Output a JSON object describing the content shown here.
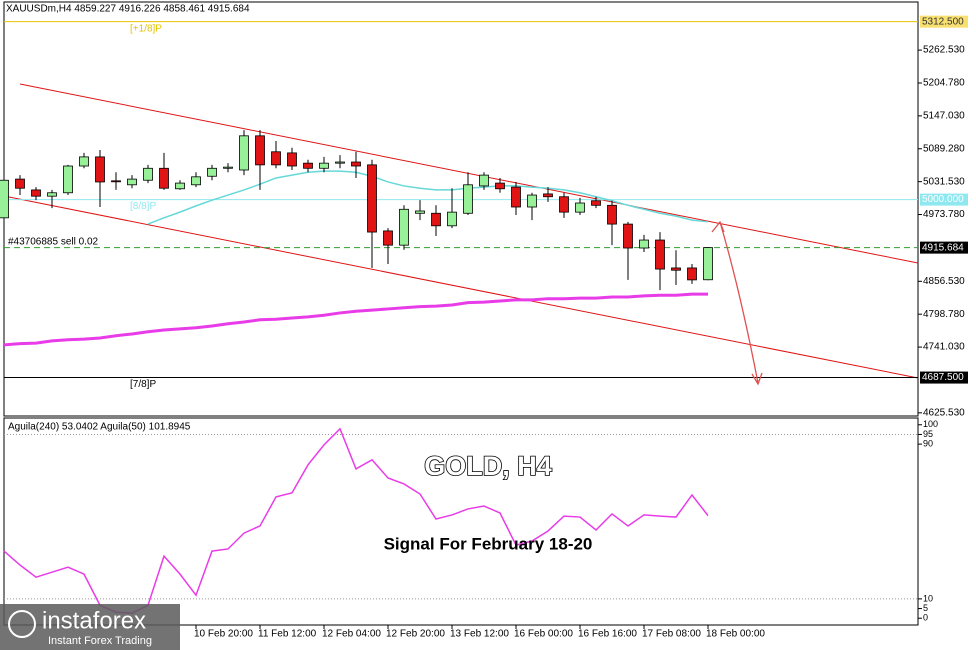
{
  "chart_data": {
    "type": "candlestick",
    "header": "XAUUSDm,H4  4859.227 4916.226 4858.461 4915.684",
    "title": "GOLD, H4",
    "subtitle": "Signal For February 18-20",
    "categories": [
      null,
      null,
      null,
      null,
      null,
      null,
      null,
      null,
      null,
      null,
      null,
      null,
      "10 Feb 20:00",
      null,
      null,
      null,
      "11 Feb 12:00",
      null,
      null,
      null,
      "12 Feb 04:00",
      null,
      null,
      null,
      "12 Feb 20:00",
      null,
      null,
      null,
      "13 Feb 12:00",
      null,
      null,
      null,
      "16 Feb 00:00",
      null,
      null,
      null,
      "16 Feb 16:00",
      null,
      null,
      null,
      "17 Feb 08:00",
      null,
      null,
      null,
      "18 Feb 00:00"
    ],
    "open": [
      4968,
      5036,
      5017,
      5006,
      5012,
      5059,
      5075,
      5033,
      5026,
      5034,
      5055,
      5019,
      5026,
      5041,
      5055,
      5052,
      5112,
      5084,
      5082,
      5064,
      5055,
      5064,
      5066,
      5061,
      4945,
      4920,
      4976,
      4976,
      4954,
      4976,
      5024,
      5029,
      5022,
      4987,
      5010,
      5005,
      4978,
      4998,
      4990,
      4957,
      4915,
      4929,
      4880,
      4880,
      4859.227
    ],
    "high": [
      5043,
      5043,
      5022,
      5017,
      5061,
      5082,
      5087,
      5048,
      5043,
      5061,
      5082,
      5034,
      5048,
      5061,
      5064,
      5122,
      5122,
      5103,
      5091,
      5070,
      5075,
      5078,
      5084,
      5070,
      4950,
      4990,
      4999,
      4990,
      5020,
      5048,
      5048,
      5038,
      5031,
      5012,
      5022,
      5012,
      5003,
      5005,
      4998,
      4961,
      4938,
      4943,
      4911,
      4887,
      4916.226
    ],
    "low": [
      4964,
      5008,
      4999,
      4985,
      5008,
      5055,
      4987,
      5017,
      5020,
      5029,
      5017,
      5017,
      5022,
      5034,
      5048,
      5043,
      5017,
      5055,
      5052,
      5048,
      5048,
      5055,
      5038,
      4880,
      4887,
      4912,
      4964,
      4936,
      4950,
      4973,
      5017,
      5012,
      4973,
      4964,
      4996,
      4968,
      4973,
      4985,
      4920,
      4859,
      4908,
      4841,
      4850,
      4852,
      4858.461
    ],
    "close": [
      5034,
      5020,
      5006,
      5012,
      5059,
      5075,
      5031,
      5032,
      5036,
      5055,
      5020,
      5029,
      5040,
      5055,
      5057,
      5112,
      5061,
      5061,
      5059,
      5055,
      5064,
      5066,
      5059,
      4943,
      4920,
      4983,
      4980,
      4954,
      4978,
      5026,
      5043,
      5019,
      4987,
      5008,
      5005,
      4978,
      4994,
      4990,
      4957,
      4915,
      4929,
      4878,
      4876,
      4859,
      4915.684
    ],
    "up_color": "#98f098",
    "down_color": "#e01414",
    "overlays": [
      {
        "color": "#66d8d8",
        "values": [
          null,
          null,
          null,
          null,
          null,
          null,
          null,
          null,
          null,
          4957,
          4968,
          4978,
          4989,
          4999,
          5008,
          5017,
          5027,
          5038,
          5043,
          5048,
          5050,
          5050,
          5048,
          5041,
          5031,
          5024,
          5020,
          5017,
          5017,
          5020,
          5022,
          5024,
          5024,
          5022,
          5020,
          5017,
          5012,
          5005,
          4998,
          4990,
          4983,
          4976,
          4971,
          4964,
          4961
        ]
      },
      {
        "color": "#e83ce8",
        "values": [
          4745,
          4747,
          4748,
          4752,
          4754,
          4755,
          4757,
          4761,
          4764,
          4768,
          4771,
          4773,
          4775,
          4778,
          4782,
          4785,
          4789,
          4790,
          4792,
          4794,
          4797,
          4801,
          4804,
          4806,
          4808,
          4810,
          4812,
          4813,
          4815,
          4819,
          4820,
          4822,
          4824,
          4824,
          4826,
          4826,
          4827,
          4827,
          4829,
          4829,
          4831,
          4832,
          4832,
          4834,
          4834
        ]
      }
    ],
    "ylim": [
      4620,
      5347
    ],
    "yticks": [
      {
        "value": 5262.53,
        "label": "5262.530"
      },
      {
        "value": 5204.78,
        "label": "5204.780"
      },
      {
        "value": 5147.03,
        "label": "5147.030"
      },
      {
        "value": 5089.28,
        "label": "5089.280"
      },
      {
        "value": 5031.53,
        "label": "5031.530"
      },
      {
        "value": 4973.78,
        "label": "4973.780"
      },
      {
        "value": 4856.53,
        "label": "4856.530"
      },
      {
        "value": 4798.78,
        "label": "4798.780"
      },
      {
        "value": 4741.03,
        "label": "4741.030"
      },
      {
        "value": 4625.53,
        "label": "4625.530"
      }
    ],
    "levels": [
      {
        "value": 5312.5,
        "label": "5312.500",
        "note": "[+1/8]P",
        "color": "#e6c200",
        "box": "#f7df70",
        "text_color": "#333333",
        "dashed": false
      },
      {
        "value": 5000,
        "label": "5000.000",
        "note": "[8/8]P",
        "color": "#8fe8f0",
        "box": "#8fe8f0",
        "text_color": "#ffffff",
        "dashed": false
      },
      {
        "value": 4915.684,
        "label": "4915.684",
        "note": "#43706885 sell 0.02",
        "color": "#2e9e2e",
        "box": "#000000",
        "text_color": "#ffffff",
        "dashed": true
      },
      {
        "value": 4687.5,
        "label": "4687.500",
        "note": "[7/8]P",
        "color": "#000000",
        "box": "#000000",
        "text_color": "#ffffff",
        "dashed": false
      }
    ],
    "indicator": {
      "legend": "Aguila(240) 53.0402  Aguila(50) 101.8945",
      "color": "#e83ce8",
      "ylim": [
        -3.5,
        103.5
      ],
      "yticks": [
        100,
        95,
        90,
        10,
        5,
        0
      ],
      "grid_levels": [
        95,
        10
      ],
      "values": [
        34.7,
        27.5,
        21.2,
        23.8,
        26.4,
        22.8,
        6.7,
        3.1,
        2.6,
        6.7,
        32.1,
        22.8,
        11.9,
        34.7,
        35.8,
        44.0,
        47.7,
        62.7,
        64.8,
        79.3,
        89.6,
        97.9,
        77.2,
        81.9,
        72.5,
        69.4,
        64.2,
        51.3,
        53.4,
        56.5,
        58.0,
        54.4,
        37.8,
        39.9,
        45.1,
        52.8,
        52.3,
        45.6,
        53.9,
        47.7,
        53.4,
        52.8,
        52.3,
        63.7,
        53.04
      ]
    }
  },
  "brand": {
    "name": "instaforex",
    "tagline": "Instant Forex Trading"
  }
}
